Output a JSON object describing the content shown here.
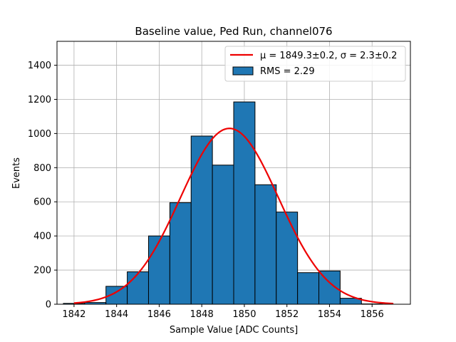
{
  "chart_data": {
    "type": "bar",
    "title": "Baseline value, Ped Run, channel076",
    "xlabel": "Sample Value [ADC Counts]",
    "ylabel": "Events",
    "xlim": [
      1841.2,
      1857.8
    ],
    "ylim": [
      0,
      1540
    ],
    "xticks": [
      1842,
      1844,
      1846,
      1848,
      1850,
      1852,
      1854,
      1856
    ],
    "yticks": [
      0,
      200,
      400,
      600,
      800,
      1000,
      1200,
      1400
    ],
    "grid": true,
    "legend_position": "top-right",
    "histogram": {
      "bin_width": 1.0,
      "bins": [
        {
          "x": 1842.0,
          "value": 5
        },
        {
          "x": 1843.0,
          "value": 10
        },
        {
          "x": 1844.0,
          "value": 105
        },
        {
          "x": 1845.0,
          "value": 190
        },
        {
          "x": 1846.0,
          "value": 400
        },
        {
          "x": 1847.0,
          "value": 595
        },
        {
          "x": 1848.0,
          "value": 985
        },
        {
          "x": 1849.0,
          "value": 815
        },
        {
          "x": 1850.0,
          "value": 1185
        },
        {
          "x": 1851.0,
          "value": 700
        },
        {
          "x": 1852.0,
          "value": 540
        },
        {
          "x": 1853.0,
          "value": 185
        },
        {
          "x": 1854.0,
          "value": 195
        },
        {
          "x": 1855.0,
          "value": 35
        },
        {
          "x": 1856.0,
          "value": 2
        }
      ],
      "fill_color": "#1f77b4",
      "edge_color": "#000000",
      "legend_label": "RMS = 2.29"
    },
    "fit": {
      "type": "gaussian",
      "mean": 1849.3,
      "sigma": 2.3,
      "amplitude": 1030,
      "x_range": [
        1842,
        1857
      ],
      "color": "#ee0000",
      "legend_label": "μ = 1849.3±0.2, σ = 2.3±0.2"
    }
  }
}
